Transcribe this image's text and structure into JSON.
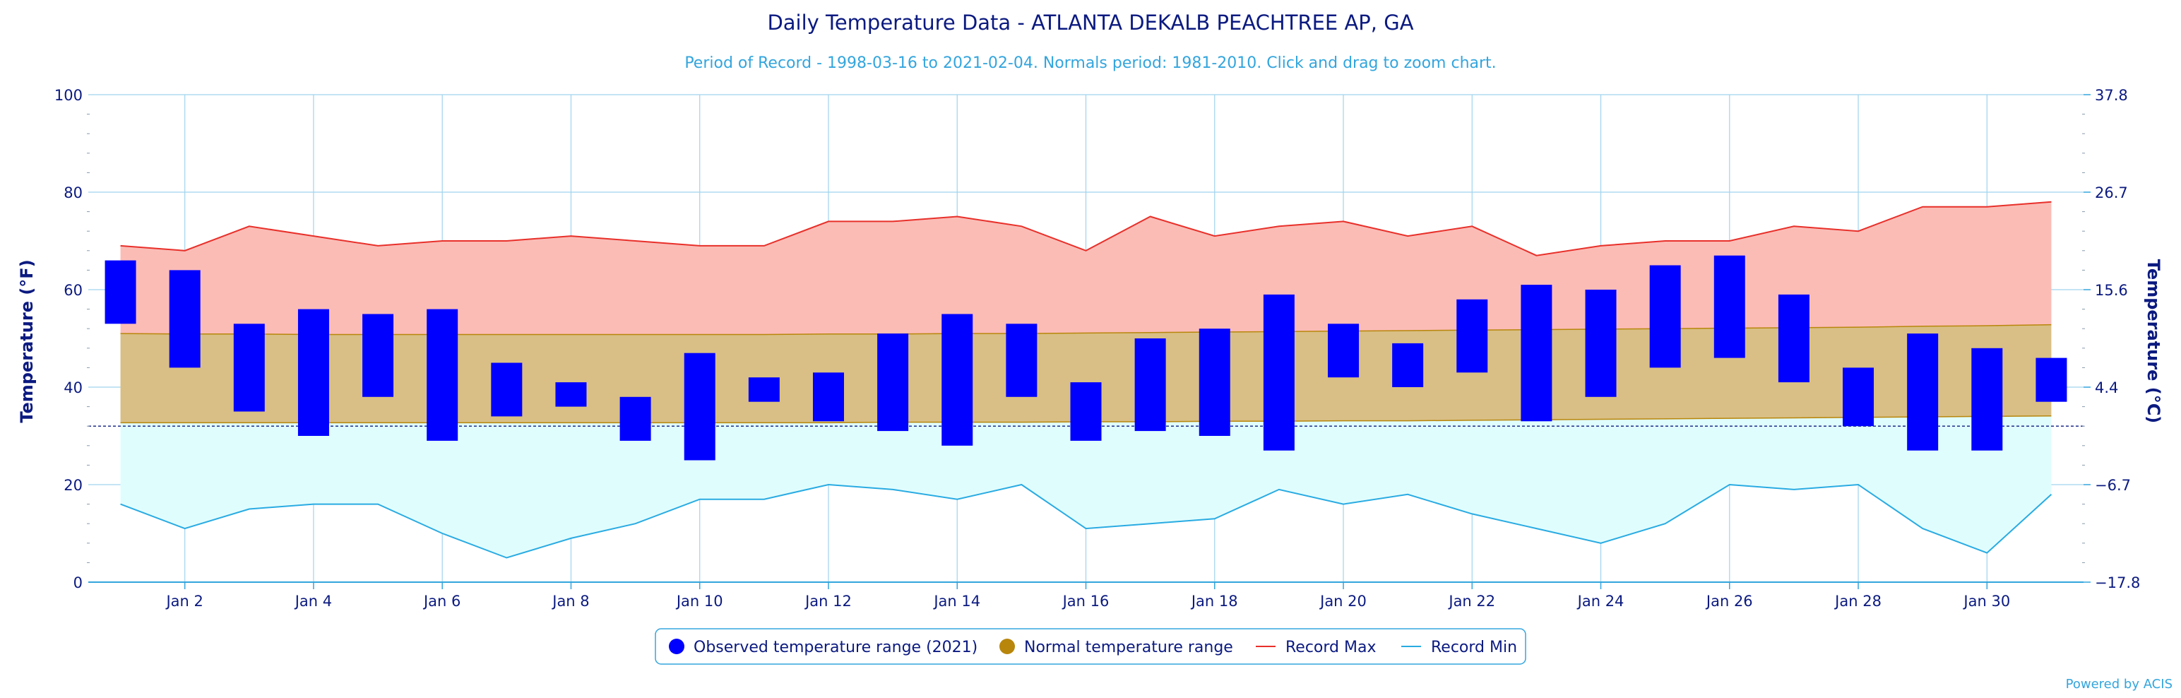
{
  "chart_data": {
    "type": "range-bar",
    "title": "Daily Temperature Data - ATLANTA DEKALB PEACHTREE AP, GA",
    "subtitle": "Period of Record - 1998-03-16 to 2021-02-04. Normals period: 1981-2010. Click and drag to zoom chart.",
    "ylabel_left": "Temperature (°F)",
    "ylabel_right": "Temperature (°C)",
    "ylim": [
      0,
      100
    ],
    "xlim": [
      1,
      31
    ],
    "y_ticks_left": [
      0,
      20,
      40,
      60,
      80,
      100
    ],
    "y_ticks_right": [
      {
        "f": 0,
        "label": "−17.8"
      },
      {
        "f": 20,
        "label": "−6.7"
      },
      {
        "f": 40,
        "label": "4.4"
      },
      {
        "f": 60,
        "label": "15.6"
      },
      {
        "f": 80,
        "label": "26.7"
      },
      {
        "f": 100,
        "label": "37.8"
      }
    ],
    "x_ticks": [
      {
        "day": 2,
        "label": "Jan 2"
      },
      {
        "day": 4,
        "label": "Jan 4"
      },
      {
        "day": 6,
        "label": "Jan 6"
      },
      {
        "day": 8,
        "label": "Jan 8"
      },
      {
        "day": 10,
        "label": "Jan 10"
      },
      {
        "day": 12,
        "label": "Jan 12"
      },
      {
        "day": 14,
        "label": "Jan 14"
      },
      {
        "day": 16,
        "label": "Jan 16"
      },
      {
        "day": 18,
        "label": "Jan 18"
      },
      {
        "day": 20,
        "label": "Jan 20"
      },
      {
        "day": 22,
        "label": "Jan 22"
      },
      {
        "day": 24,
        "label": "Jan 24"
      },
      {
        "day": 26,
        "label": "Jan 26"
      },
      {
        "day": 28,
        "label": "Jan 28"
      },
      {
        "day": 30,
        "label": "Jan 30"
      }
    ],
    "freezing_line_f": 32,
    "days": [
      1,
      2,
      3,
      4,
      5,
      6,
      7,
      8,
      9,
      10,
      11,
      12,
      13,
      14,
      15,
      16,
      17,
      18,
      19,
      20,
      21,
      22,
      23,
      24,
      25,
      26,
      27,
      28,
      29,
      30,
      31
    ],
    "series": [
      {
        "name": "Observed temperature range (2021)",
        "color": "#0000ff",
        "low": [
          53,
          44,
          35,
          30,
          38,
          29,
          34,
          36,
          29,
          25,
          37,
          33,
          31,
          28,
          38,
          29,
          31,
          30,
          27,
          42,
          40,
          43,
          33,
          38,
          44,
          46,
          41,
          32,
          27,
          27,
          37
        ],
        "high": [
          66,
          64,
          53,
          56,
          55,
          56,
          45,
          41,
          38,
          47,
          42,
          43,
          51,
          55,
          53,
          41,
          50,
          52,
          59,
          53,
          49,
          58,
          61,
          60,
          65,
          67,
          59,
          44,
          51,
          48,
          46
        ]
      },
      {
        "name": "Normal temperature range",
        "color": "#b8860b",
        "fill": "#d9bf85",
        "low": [
          32.7,
          32.7,
          32.7,
          32.7,
          32.7,
          32.7,
          32.7,
          32.7,
          32.7,
          32.7,
          32.7,
          32.7,
          32.8,
          32.8,
          32.8,
          32.9,
          32.9,
          33.0,
          33.0,
          33.1,
          33.1,
          33.2,
          33.3,
          33.4,
          33.5,
          33.6,
          33.7,
          33.8,
          33.9,
          34.0,
          34.1
        ],
        "high": [
          51.0,
          50.9,
          50.9,
          50.8,
          50.8,
          50.8,
          50.8,
          50.8,
          50.8,
          50.8,
          50.8,
          50.9,
          50.9,
          51.0,
          51.0,
          51.1,
          51.2,
          51.3,
          51.4,
          51.5,
          51.6,
          51.7,
          51.8,
          51.9,
          52.0,
          52.1,
          52.2,
          52.3,
          52.5,
          52.6,
          52.8
        ]
      },
      {
        "name": "Record Max",
        "color": "#e8302a",
        "fill": "#fbbcb6",
        "values": [
          69,
          68,
          73,
          71,
          69,
          70,
          70,
          71,
          70,
          69,
          69,
          74,
          74,
          75,
          73,
          68,
          75,
          71,
          73,
          74,
          71,
          73,
          67,
          69,
          70,
          70,
          73,
          72,
          77,
          77,
          78
        ]
      },
      {
        "name": "Record Min",
        "color": "#29abe2",
        "fill": "#e0fdfd",
        "values": [
          16,
          11,
          15,
          16,
          16,
          10,
          5,
          9,
          12,
          17,
          17,
          20,
          19,
          17,
          20,
          11,
          12,
          13,
          19,
          16,
          18,
          14,
          11,
          8,
          12,
          20,
          19,
          20,
          11,
          6,
          18
        ]
      }
    ],
    "legend_position": "bottom-center",
    "grid": true,
    "credit": "Powered by ACIS"
  }
}
